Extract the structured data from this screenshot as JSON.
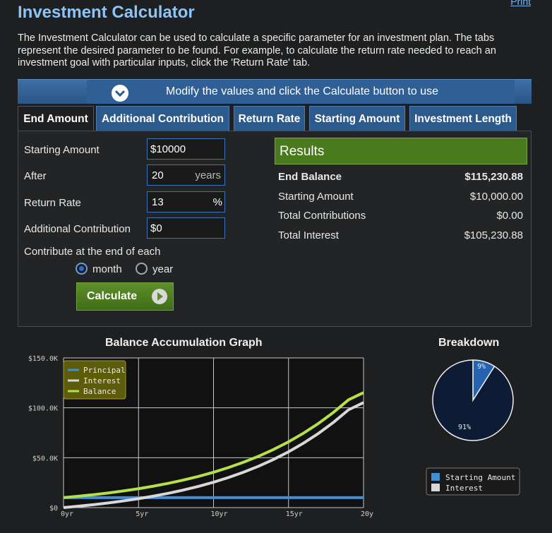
{
  "header": {
    "print_link": "Print",
    "title": "Investment Calculator",
    "description": "The Investment Calculator can be used to calculate a specific parameter for an investment plan. The tabs represent the desired parameter to be found. For example, to calculate the return rate needed to reach an investment goal with particular inputs, click the 'Return Rate' tab."
  },
  "banner": {
    "text": "Modify the values and click the Calculate button to use",
    "icon": "chevron-down-icon"
  },
  "tabs": [
    {
      "label": "End Amount",
      "active": true
    },
    {
      "label": "Additional Contribution",
      "active": false
    },
    {
      "label": "Return Rate",
      "active": false
    },
    {
      "label": "Starting Amount",
      "active": false
    },
    {
      "label": "Investment Length",
      "active": false
    }
  ],
  "form": {
    "starting_amount": {
      "label": "Starting Amount",
      "value": "$10000"
    },
    "after": {
      "label": "After",
      "value": "20",
      "unit": "years"
    },
    "return_rate": {
      "label": "Return Rate",
      "value": "13",
      "unit": "%"
    },
    "additional_contribution": {
      "label": "Additional Contribution",
      "value": "$0"
    },
    "contribute_label": "Contribute at the end of each",
    "options": {
      "month": "month",
      "year": "year",
      "selected": "month"
    },
    "calculate_label": "Calculate"
  },
  "results": {
    "title": "Results",
    "rows": [
      {
        "label": "End Balance",
        "value": "$115,230.88"
      },
      {
        "label": "Starting Amount",
        "value": "$10,000.00"
      },
      {
        "label": "Total Contributions",
        "value": "$0.00"
      },
      {
        "label": "Total Interest",
        "value": "$105,230.88"
      }
    ]
  },
  "colors": {
    "accent": "#2d5a8c",
    "principal": "#3f8fd8",
    "interest": "#d8d8d8",
    "balance": "#b5e04a",
    "pie_start": "#2563b0",
    "pie_interest": "#0d1b35"
  },
  "chart_data": [
    {
      "type": "line",
      "title": "Balance Accumulation Graph",
      "x": [
        0,
        1,
        2,
        3,
        4,
        5,
        6,
        7,
        8,
        9,
        10,
        11,
        12,
        13,
        14,
        15,
        16,
        17,
        18,
        19,
        20
      ],
      "x_ticks": [
        "0yr",
        "5yr",
        "10yr",
        "15yr",
        "20yr"
      ],
      "y_ticks": [
        "$0",
        "$50.0K",
        "$100.0K",
        "$150.0K"
      ],
      "ylim": [
        0,
        150000
      ],
      "xlim": [
        0,
        20
      ],
      "legend_placement": "top-left",
      "series": [
        {
          "name": "Principal",
          "values": [
            10000,
            10000,
            10000,
            10000,
            10000,
            10000,
            10000,
            10000,
            10000,
            10000,
            10000,
            10000,
            10000,
            10000,
            10000,
            10000,
            10000,
            10000,
            10000,
            10000,
            10000
          ]
        },
        {
          "name": "Interest",
          "values": [
            0,
            1380,
            2940,
            4700,
            6690,
            8950,
            11490,
            14370,
            17620,
            21290,
            25440,
            30140,
            35440,
            41440,
            48230,
            55900,
            64580,
            74380,
            85460,
            97990,
            105230
          ]
        },
        {
          "name": "Balance",
          "values": [
            10000,
            11380,
            12940,
            14700,
            16690,
            18950,
            21490,
            24370,
            27620,
            31290,
            35440,
            40140,
            45440,
            51440,
            58230,
            65900,
            74580,
            84380,
            95460,
            107990,
            115230
          ]
        }
      ]
    },
    {
      "type": "pie",
      "title": "Breakdown",
      "labels": [
        "Starting Amount",
        "Interest"
      ],
      "values": [
        9,
        91
      ],
      "data_labels": [
        "9%",
        "91%"
      ]
    }
  ]
}
